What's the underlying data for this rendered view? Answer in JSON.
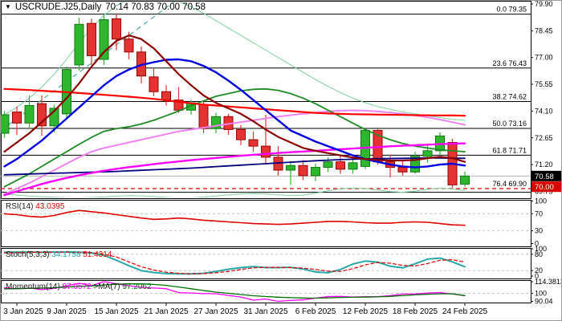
{
  "header": {
    "collapse_icon": "▼",
    "symbol_period": "USCRUDE.J25,Daily",
    "ohlc": "70.14 70.83 70.00 70.58"
  },
  "colors": {
    "background": "#ffffff",
    "panel_border": "#000000",
    "grid_dashed": "#c6c6c6",
    "candle_up_fill": "#2fb62f",
    "candle_up_stroke": "#117711",
    "candle_down_fill": "#e53232",
    "candle_down_stroke": "#990000",
    "last_price_line": "#b3b3b3",
    "fib_line": "#000000",
    "fib_dashed_red": "#dd0000",
    "price_box_last": "#000000",
    "price_box_bid": "#d90000"
  },
  "chart_data": {
    "type": "candlestick",
    "symbol": "USCRUDE.J25",
    "timeframe": "Daily",
    "current_ohlc": {
      "open": 70.14,
      "high": 70.83,
      "low": 70.0,
      "close": 70.58
    },
    "x_axis": {
      "tick_labels": [
        "3 Jan 2025",
        "9 Jan 2025",
        "15 Jan 2025",
        "21 Jan 2025",
        "27 Jan 2025",
        "31 Jan 2025",
        "6 Feb 2025",
        "12 Feb 2025",
        "18 Feb 2025",
        "24 Feb 2025"
      ],
      "tick_bars": [
        1,
        5,
        9,
        13,
        17,
        21,
        25,
        29,
        33,
        37
      ]
    },
    "price_axis": {
      "ticks": [
        "79.90",
        "78.45",
        "77.00",
        "75.55",
        "74.10",
        "72.65",
        "71.20",
        "69.75"
      ],
      "ylim": [
        69.42,
        80.07
      ]
    },
    "bars": [
      [
        72.9,
        74.1,
        72.65,
        73.9
      ],
      [
        74.05,
        74.35,
        72.8,
        73.45
      ],
      [
        73.45,
        74.95,
        73.15,
        74.4
      ],
      [
        74.5,
        74.95,
        72.75,
        73.3
      ],
      [
        73.3,
        74.45,
        72.95,
        74.25
      ],
      [
        73.95,
        76.5,
        73.7,
        76.35
      ],
      [
        76.6,
        79.15,
        76.3,
        78.8
      ],
      [
        78.85,
        79.1,
        76.6,
        77.1
      ],
      [
        76.9,
        79.3,
        76.6,
        79.05
      ],
      [
        79.1,
        79.35,
        77.4,
        78.0
      ],
      [
        78.0,
        78.4,
        76.9,
        77.3
      ],
      [
        77.3,
        77.6,
        75.6,
        76.0
      ],
      [
        75.95,
        76.45,
        74.9,
        75.15
      ],
      [
        75.15,
        75.5,
        74.4,
        74.7
      ],
      [
        74.7,
        75.4,
        74.0,
        74.15
      ],
      [
        74.15,
        74.7,
        73.9,
        74.55
      ],
      [
        74.45,
        74.6,
        72.9,
        73.15
      ],
      [
        73.15,
        74.0,
        72.9,
        73.8
      ],
      [
        73.8,
        73.95,
        72.8,
        73.1
      ],
      [
        73.1,
        73.35,
        72.25,
        72.55
      ],
      [
        72.55,
        73.0,
        71.9,
        72.2
      ],
      [
        72.2,
        73.9,
        71.2,
        71.6
      ],
      [
        71.6,
        72.2,
        70.6,
        70.9
      ],
      [
        70.9,
        71.4,
        70.1,
        71.15
      ],
      [
        71.15,
        71.45,
        70.35,
        70.6
      ],
      [
        70.6,
        71.25,
        70.3,
        71.05
      ],
      [
        71.05,
        71.6,
        70.8,
        71.35
      ],
      [
        71.35,
        71.7,
        70.7,
        70.95
      ],
      [
        70.95,
        71.5,
        70.7,
        71.3
      ],
      [
        71.1,
        73.2,
        70.95,
        73.05
      ],
      [
        73.05,
        73.2,
        71.2,
        71.35
      ],
      [
        71.35,
        71.75,
        70.5,
        71.05
      ],
      [
        71.05,
        71.45,
        70.6,
        70.8
      ],
      [
        70.8,
        71.9,
        70.7,
        71.65
      ],
      [
        71.65,
        72.35,
        71.3,
        71.95
      ],
      [
        71.95,
        72.95,
        71.7,
        72.75
      ],
      [
        72.4,
        72.6,
        69.95,
        70.1
      ],
      [
        70.14,
        70.83,
        70.0,
        70.58
      ]
    ],
    "fib_levels": [
      {
        "pct": "0.0",
        "price": 79.35,
        "label": "0.0 79.35",
        "style": "solid"
      },
      {
        "pct": "23.6",
        "price": 76.43,
        "label": "23.6 76.43",
        "style": "solid"
      },
      {
        "pct": "38.2",
        "price": 74.62,
        "label": "38.2 74.62",
        "style": "solid"
      },
      {
        "pct": "50.0",
        "price": 73.16,
        "label": "50.0 73.16",
        "style": "solid"
      },
      {
        "pct": "61.8",
        "price": 71.71,
        "label": "61.8 71.71",
        "style": "solid"
      },
      {
        "pct": "76.4",
        "price": 69.9,
        "label": "76.4 69.90",
        "style": "dashed-red"
      }
    ],
    "support_line_price": 69.7,
    "last_price_line": 70.58,
    "price_marker_boxes": [
      {
        "label": "70.58",
        "bg": "#000000",
        "fg": "#ffffff",
        "price": 70.58
      },
      {
        "label": "70.00",
        "bg": "#d90000",
        "fg": "#ffffff",
        "price": 70.0
      }
    ],
    "trendline": {
      "x1_bar": -0.2,
      "p1": 73.1,
      "x2_bar": 14.2,
      "p2": 80.3,
      "color": "#4fa8a8"
    },
    "overlays": [
      {
        "name": "envelope-upper",
        "color": "#7fcf9f",
        "width": 1,
        "values": [
          73.9,
          74.3,
          74.8,
          75.4,
          76.1,
          76.9,
          77.8,
          78.6,
          79.3,
          79.8,
          80.15,
          80.35,
          80.35,
          80.25,
          80.05,
          79.75,
          79.4,
          79.0,
          78.6,
          78.2,
          77.8,
          77.4,
          77.0,
          76.6,
          76.2,
          75.8,
          75.45,
          75.1,
          74.8,
          74.55,
          74.35,
          74.2,
          74.05,
          73.95,
          73.85,
          73.75,
          73.65,
          73.6
        ]
      },
      {
        "name": "envelope-lower",
        "color": "#7fcf9f",
        "width": 1,
        "values": [
          69.6,
          69.55,
          69.5,
          69.46,
          69.43,
          69.41,
          69.4,
          69.42,
          69.45,
          69.49,
          69.52,
          69.51,
          69.47,
          69.42,
          69.39,
          69.4,
          69.44,
          69.5,
          69.56,
          69.6,
          69.62,
          69.6,
          69.56,
          69.52,
          69.55,
          69.65,
          69.78,
          69.88,
          69.94,
          69.9,
          69.82,
          69.74,
          69.7,
          69.76,
          69.86,
          69.92,
          69.88,
          69.8
        ]
      },
      {
        "name": "ma-plum",
        "color": "#ee82ee",
        "width": 2,
        "values": [
          69.6,
          69.9,
          70.2,
          70.55,
          70.9,
          71.25,
          71.6,
          71.9,
          72.1,
          72.25,
          72.4,
          72.55,
          72.7,
          72.85,
          73.0,
          73.1,
          73.2,
          73.3,
          73.4,
          73.5,
          73.6,
          73.7,
          73.8,
          73.88,
          73.95,
          74.02,
          74.08,
          74.12,
          74.14,
          74.12,
          74.08,
          74.02,
          73.95,
          73.86,
          73.76,
          73.64,
          73.5,
          73.35
        ]
      },
      {
        "name": "ma-darkgreen",
        "color": "#1f8b24",
        "width": 1.8,
        "values": [
          70.0,
          70.35,
          70.7,
          71.1,
          71.5,
          71.9,
          72.3,
          72.68,
          73.0,
          73.15,
          73.25,
          73.4,
          73.6,
          73.85,
          74.1,
          74.4,
          74.65,
          74.9,
          75.05,
          75.2,
          75.28,
          75.3,
          75.22,
          75.05,
          74.8,
          74.5,
          74.15,
          73.8,
          73.45,
          73.1,
          72.8,
          72.55,
          72.35,
          72.2,
          72.1,
          72.0,
          71.95,
          71.9
        ]
      },
      {
        "name": "ma-red",
        "color": "#ff0000",
        "width": 2.2,
        "values": [
          75.3,
          75.27,
          75.24,
          75.2,
          75.16,
          75.12,
          75.08,
          75.03,
          74.98,
          74.93,
          74.88,
          74.82,
          74.76,
          74.68,
          74.6,
          74.52,
          74.45,
          74.4,
          74.35,
          74.3,
          74.25,
          74.2,
          74.15,
          74.1,
          74.05,
          74.0,
          73.97,
          73.95,
          73.93,
          73.92,
          73.91,
          73.9,
          73.89,
          73.88,
          73.87,
          73.86,
          73.86,
          73.85
        ]
      },
      {
        "name": "ma-navy",
        "color": "#000080",
        "width": 1.8,
        "values": [
          70.65,
          70.67,
          70.69,
          70.71,
          70.73,
          70.75,
          70.77,
          70.79,
          70.81,
          70.83,
          70.86,
          70.89,
          70.92,
          70.95,
          70.98,
          71.01,
          71.05,
          71.09,
          71.13,
          71.17,
          71.21,
          71.25,
          71.29,
          71.33,
          71.37,
          71.41,
          71.44,
          71.47,
          71.49,
          71.51,
          71.52,
          71.53,
          71.54,
          71.55,
          71.56,
          71.56,
          71.55,
          71.54
        ]
      },
      {
        "name": "ma-magenta",
        "color": "#ff00ff",
        "width": 2.4,
        "values": [
          69.55,
          69.75,
          69.95,
          70.15,
          70.32,
          70.48,
          70.62,
          70.75,
          70.87,
          70.97,
          71.06,
          71.14,
          71.22,
          71.3,
          71.37,
          71.44,
          71.5,
          71.56,
          71.62,
          71.68,
          71.73,
          71.78,
          71.83,
          71.87,
          71.91,
          71.95,
          71.99,
          72.03,
          72.07,
          72.11,
          72.15,
          72.19,
          72.22,
          72.25,
          72.28,
          72.31,
          72.33,
          72.35
        ]
      },
      {
        "name": "ma-blue",
        "color": "#0000e0",
        "width": 2.4,
        "values": [
          71.1,
          71.5,
          72.0,
          72.5,
          73.1,
          73.7,
          74.3,
          74.9,
          75.5,
          76.0,
          76.35,
          76.6,
          76.75,
          76.88,
          76.9,
          76.8,
          76.55,
          76.2,
          75.75,
          75.25,
          74.7,
          74.15,
          73.6,
          73.05,
          72.75,
          72.45,
          72.2,
          71.95,
          71.7,
          71.5,
          71.35,
          71.2,
          71.1,
          71.05,
          71.1,
          71.2,
          71.25,
          71.15
        ]
      },
      {
        "name": "ma-maroon",
        "color": "#8b0000",
        "width": 2.2,
        "values": [
          71.9,
          72.4,
          72.9,
          73.5,
          74.1,
          74.8,
          75.6,
          76.5,
          77.3,
          77.9,
          78.2,
          78.0,
          77.5,
          76.8,
          76.1,
          75.5,
          74.95,
          74.55,
          74.25,
          73.95,
          73.55,
          73.1,
          72.7,
          72.4,
          72.1,
          71.95,
          71.82,
          71.7,
          71.58,
          71.5,
          71.45,
          71.42,
          71.42,
          71.45,
          71.55,
          71.62,
          71.55,
          71.35
        ]
      }
    ],
    "indicators": [
      {
        "name": "rsi",
        "label_name": "RSI(14)",
        "label_value": "43.0395",
        "axis_ticks": [
          "100",
          "70",
          "30",
          "0"
        ],
        "levels": [
          70,
          30
        ],
        "series": [
          {
            "name": "rsi-line",
            "color": "#e00000",
            "width": 1.6,
            "dashed": false,
            "values": [
              70,
              68,
              64,
              62,
              66,
              73,
              78,
              75,
              72,
              68,
              64,
              60,
              57,
              58,
              60,
              58,
              55,
              53,
              51,
              49,
              47,
              46,
              45,
              46,
              48,
              50,
              52,
              52,
              51,
              49,
              48,
              48,
              50,
              51,
              50,
              47,
              44,
              43
            ]
          }
        ]
      },
      {
        "name": "stochastic",
        "label_name": "Stoch(5,3,3)",
        "label_value": "34.1758",
        "label_value2": "51.4314",
        "axis_ticks": [
          "100",
          "80",
          "20",
          "0"
        ],
        "levels": [
          80,
          20
        ],
        "series": [
          {
            "name": "stoch-main",
            "color": "#28a8a8",
            "width": 2,
            "dashed": false,
            "values": [
              87,
              88,
              88,
              87,
              88,
              88,
              87,
              85,
              76,
              58,
              38,
              20,
              13,
              9,
              8,
              8,
              10,
              17,
              25,
              31,
              35,
              31,
              31,
              32,
              26,
              15,
              12,
              24,
              44,
              55,
              51,
              36,
              30,
              45,
              62,
              66,
              52,
              34.2
            ]
          },
          {
            "name": "stoch-signal",
            "color": "#e00000",
            "width": 1.2,
            "dashed": true,
            "values": [
              85,
              86,
              87,
              87,
              87,
              88,
              87,
              86,
              80,
              70,
              52,
              34,
              22,
              14,
              10,
              8,
              9,
              12,
              17,
              24,
              30,
              32,
              32,
              31,
              29,
              24,
              18,
              17,
              27,
              41,
              50,
              47,
              39,
              37,
              46,
              58,
              60,
              51.4
            ]
          }
        ]
      },
      {
        "name": "momentum",
        "label_name": "Momentum(14)",
        "label_value": "97.0572",
        "label_name2": ">MA(7)",
        "label_value2": "97.2062",
        "axis_ticks": [
          "114.3813",
          "100",
          "90.04"
        ],
        "levels": [
          100
        ],
        "series": [
          {
            "name": "momentum-line",
            "color": "#ff00ff",
            "width": 1.3,
            "dashed": false,
            "values": [
              106.8,
              105.7,
              106.6,
              104.6,
              106.1,
              109.3,
              112.4,
              109.4,
              114.38,
              111.7,
              109.3,
              107.4,
              106.6,
              105.8,
              100.9,
              100.4,
              99.6,
              99.5,
              97.4,
              95.4,
              91.6,
              92.9,
              90.04,
              91.2,
              91.8,
              94.0,
              96.0,
              96.2,
              95.3,
              95.9,
              95.9,
              97.1,
              99.1,
              99.2,
              100.3,
              101.0,
              99.1,
              97.06
            ]
          },
          {
            "name": "momentum-ma",
            "color": "#007000",
            "width": 1.3,
            "dashed": false,
            "values": [
              105.5,
              105.8,
              106.2,
              106.5,
              107.0,
              107.8,
              108.6,
              109.1,
              110.3,
              111.2,
              111.7,
              111.6,
              111.0,
              109.8,
              107.9,
              105.7,
              103.5,
              101.5,
              100.0,
              98.5,
              97.0,
              96.0,
              95.2,
              94.6,
              94.2,
              94.0,
              94.3,
              94.9,
              95.1,
              95.3,
              95.6,
              96.2,
              97.2,
              98.1,
              98.8,
              99.4,
              99.4,
              97.21
            ]
          }
        ]
      }
    ]
  }
}
